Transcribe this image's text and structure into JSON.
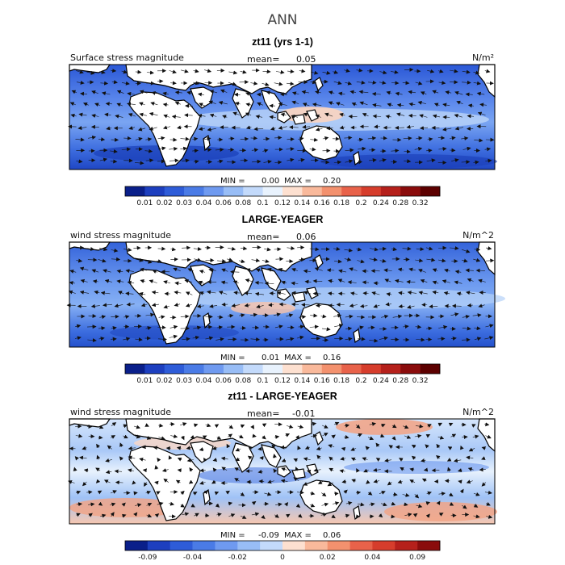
{
  "page": {
    "title": "ANN"
  },
  "chart_data": [
    {
      "type": "heatmap",
      "panel_title": "zt11 (yrs 1-1)",
      "field_label": "Surface stress magnitude",
      "mean_label": "mean=",
      "mean_value": "0.05",
      "units": "N/m²",
      "min_label": "MIN =",
      "min_value": "0.00",
      "max_label": "MAX =",
      "max_value": "0.20",
      "colorbar_ticks": [
        "0.01",
        "0.02",
        "0.03",
        "0.04",
        "0.06",
        "0.08",
        "0.1",
        "0.12",
        "0.14",
        "0.16",
        "0.18",
        "0.2",
        "0.24",
        "0.28",
        "0.32"
      ],
      "colorbar_colors": [
        "#0a1f8a",
        "#1d3fbf",
        "#2e5cd8",
        "#4a7be6",
        "#6f9af0",
        "#98bdf6",
        "#c3dafb",
        "#e8f2fd",
        "#fde0d0",
        "#f9b99b",
        "#f3916e",
        "#e8624a",
        "#d63d2c",
        "#b5201b",
        "#8a0c0c",
        "#5c0000"
      ]
    },
    {
      "type": "heatmap",
      "panel_title": "LARGE-YEAGER",
      "field_label": "wind stress magnitude",
      "mean_label": "mean=",
      "mean_value": "0.06",
      "units": "N/m^2",
      "min_label": "MIN =",
      "min_value": "0.01",
      "max_label": "MAX =",
      "max_value": "0.16",
      "colorbar_ticks": [
        "0.01",
        "0.02",
        "0.03",
        "0.04",
        "0.06",
        "0.08",
        "0.1",
        "0.12",
        "0.14",
        "0.16",
        "0.18",
        "0.2",
        "0.24",
        "0.28",
        "0.32"
      ],
      "colorbar_colors": [
        "#0a1f8a",
        "#1d3fbf",
        "#2e5cd8",
        "#4a7be6",
        "#6f9af0",
        "#98bdf6",
        "#c3dafb",
        "#e8f2fd",
        "#fde0d0",
        "#f9b99b",
        "#f3916e",
        "#e8624a",
        "#d63d2c",
        "#b5201b",
        "#8a0c0c",
        "#5c0000"
      ]
    },
    {
      "type": "heatmap",
      "panel_title": "zt11 - LARGE-YEAGER",
      "field_label": "wind stress magnitude",
      "mean_label": "mean=",
      "mean_value": "-0.01",
      "units": "N/m^2",
      "min_label": "MIN =",
      "min_value": "-0.09",
      "max_label": "MAX =",
      "max_value": "0.06",
      "colorbar_ticks": [
        "-0.09",
        "",
        "-0.04",
        "",
        "-0.02",
        "",
        "0",
        "",
        "0.02",
        "",
        "0.04",
        "",
        "0.09"
      ],
      "colorbar_colors": [
        "#0a1f8a",
        "#1d3fbf",
        "#2e5cd8",
        "#4a7be6",
        "#6f9af0",
        "#98bdf6",
        "#c3dafb",
        "#fde0d0",
        "#f9b99b",
        "#f3916e",
        "#e8624a",
        "#d63d2c",
        "#b5201b",
        "#8a0c0c"
      ]
    }
  ]
}
